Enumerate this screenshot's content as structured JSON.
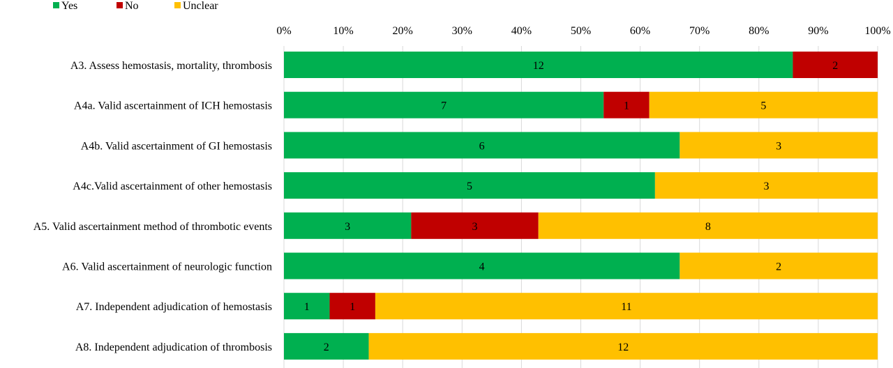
{
  "chart_data": {
    "type": "bar",
    "orientation": "horizontal",
    "stacking": "percent",
    "categories": [
      "A3. Assess hemostasis, mortality, thrombosis",
      "A4a. Valid ascertainment of ICH hemostasis",
      "A4b. Valid ascertainment of GI hemostasis",
      "A4c.Valid ascertainment of other hemostasis",
      "A5. Valid ascertainment method of thrombotic events",
      "A6. Valid ascertainment of neurologic function",
      "A7. Independent adjudication of hemostasis",
      "A8. Independent adjudication of thrombosis"
    ],
    "series": [
      {
        "name": "Yes",
        "color": "#00b050",
        "values": [
          12,
          7,
          6,
          5,
          3,
          4,
          1,
          2
        ]
      },
      {
        "name": "No",
        "color": "#c00000",
        "values": [
          2,
          1,
          0,
          0,
          3,
          0,
          1,
          0
        ]
      },
      {
        "name": "Unclear",
        "color": "#ffc000",
        "values": [
          0,
          5,
          3,
          3,
          8,
          2,
          11,
          12
        ]
      }
    ],
    "x_ticks": [
      "0%",
      "10%",
      "20%",
      "30%",
      "40%",
      "50%",
      "60%",
      "70%",
      "80%",
      "90%",
      "100%"
    ],
    "xlim": [
      0,
      100
    ],
    "grid": true,
    "legend_position": "top-left",
    "title": "",
    "xlabel": "",
    "ylabel": ""
  }
}
